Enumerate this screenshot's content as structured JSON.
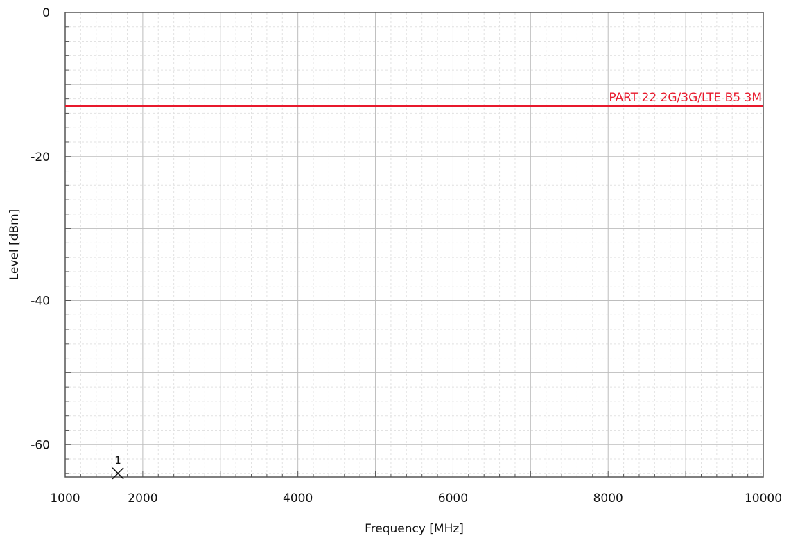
{
  "chart_data": {
    "type": "line",
    "xlabel": "Frequency [MHz]",
    "ylabel": "Level [dBm]",
    "xlim": [
      1000,
      10000
    ],
    "ylim": [
      -64.5,
      0
    ],
    "xticks": [
      1000,
      2000,
      4000,
      6000,
      8000,
      10000
    ],
    "xtick_labels": [
      "1000",
      "2000",
      "4000",
      "6000",
      "8000",
      "10000"
    ],
    "yticks": [
      0,
      -20,
      -40,
      -60
    ],
    "ytick_labels": [
      "0",
      "-20",
      "-40",
      "-60"
    ],
    "x_minor_step": 200,
    "y_minor_step": 2,
    "x_grid_step": 1000,
    "y_grid_step": 10,
    "grid": true,
    "limit_line": {
      "name": "PART 22 2G/3G/LTE B5 3M",
      "value": -13,
      "color": "#e8192c"
    },
    "markers": [
      {
        "label": "1",
        "x": 1680,
        "y": -64
      }
    ]
  }
}
